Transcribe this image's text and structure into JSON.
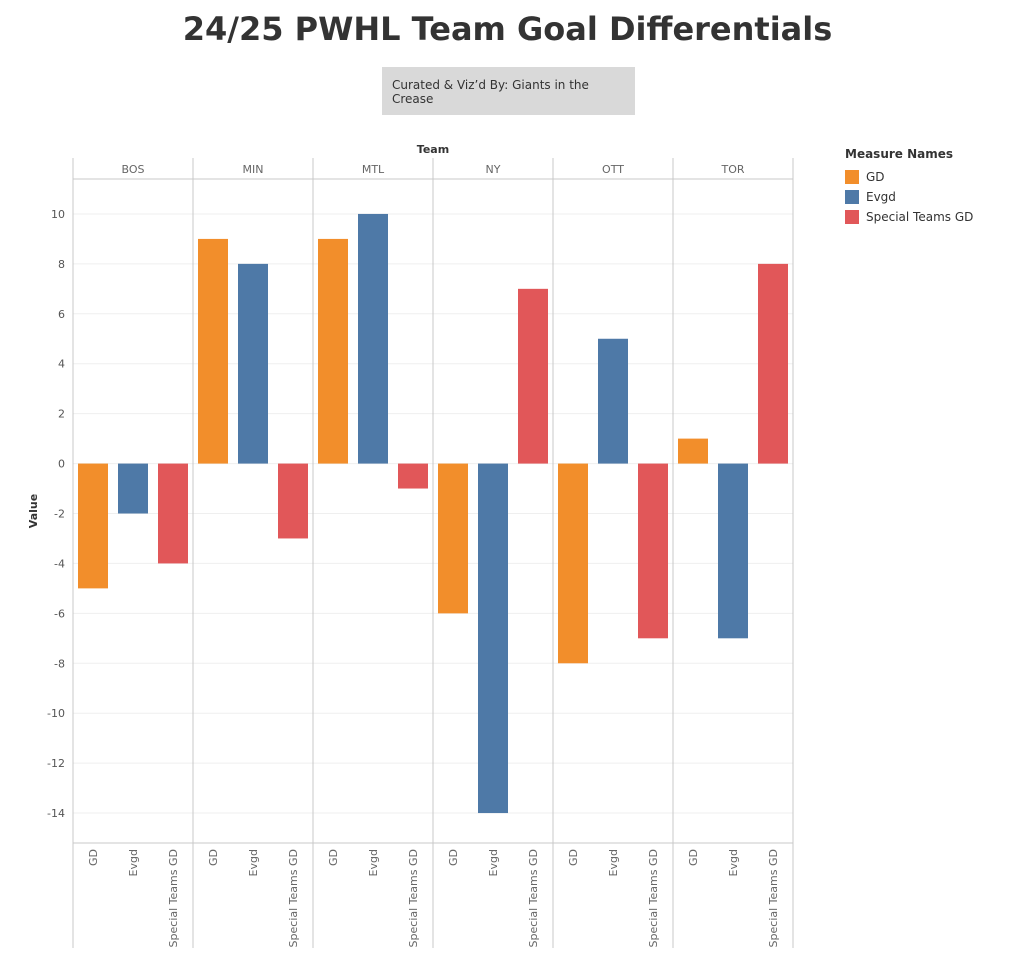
{
  "title": "24/25 PWHL Team Goal Differentials",
  "credit": "Curated & Viz’d By: Giants in the Crease",
  "legend": {
    "title": "Measure Names",
    "items": [
      {
        "label": "GD",
        "color": "#f28e2b"
      },
      {
        "label": "Evgd",
        "color": "#4e79a7"
      },
      {
        "label": "Special Teams GD",
        "color": "#e15759"
      }
    ]
  },
  "chart_data": {
    "type": "bar",
    "column_header": "Team",
    "ylabel": "Value",
    "ylim": [
      -15.2,
      11.4
    ],
    "yticks": [
      10,
      8,
      6,
      4,
      2,
      0,
      -2,
      -4,
      -6,
      -8,
      -10,
      -12,
      -14
    ],
    "teams": [
      "BOS",
      "MIN",
      "MTL",
      "NY",
      "OTT",
      "TOR"
    ],
    "measures": [
      "GD",
      "Evgd",
      "Special Teams GD"
    ],
    "colors": [
      "#f28e2b",
      "#4e79a7",
      "#e15759"
    ],
    "series": [
      {
        "name": "GD",
        "values": [
          -5,
          9,
          9,
          -6,
          -8,
          1
        ]
      },
      {
        "name": "Evgd",
        "values": [
          -2,
          8,
          10,
          -14,
          5,
          -7
        ]
      },
      {
        "name": "Special Teams GD",
        "values": [
          -4,
          -3,
          -1,
          7,
          -7,
          8
        ]
      }
    ]
  }
}
